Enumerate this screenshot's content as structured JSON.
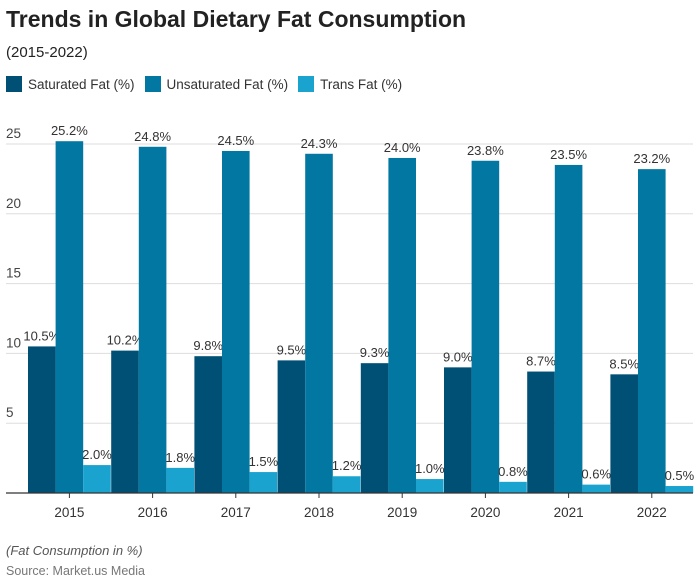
{
  "title": "Trends in Global Dietary Fat Consumption",
  "subtitle": "(2015-2022)",
  "note": "(Fat Consumption in %)",
  "source": "Source: Market.us Media",
  "chart_data": {
    "type": "bar",
    "categories": [
      "2015",
      "2016",
      "2017",
      "2018",
      "2019",
      "2020",
      "2021",
      "2022"
    ],
    "series": [
      {
        "name": "Saturated Fat (%)",
        "color": "#004f74",
        "values": [
          10.5,
          10.2,
          9.8,
          9.5,
          9.3,
          9.0,
          8.7,
          8.5
        ],
        "labels": [
          "10.5%",
          "10.2%",
          "9.8%",
          "9.5%",
          "9.3%",
          "9.0%",
          "8.7%",
          "8.5%"
        ]
      },
      {
        "name": "Unsaturated Fat (%)",
        "color": "#0277a2",
        "values": [
          25.2,
          24.8,
          24.5,
          24.3,
          24.0,
          23.8,
          23.5,
          23.2
        ],
        "labels": [
          "25.2%",
          "24.8%",
          "24.5%",
          "24.3%",
          "24.0%",
          "23.8%",
          "23.5%",
          "23.2%"
        ]
      },
      {
        "name": "Trans Fat (%)",
        "color": "#1ba3d0",
        "values": [
          2.0,
          1.8,
          1.5,
          1.2,
          1.0,
          0.8,
          0.6,
          0.5
        ],
        "labels": [
          "2.0%",
          "1.8%",
          "1.5%",
          "1.2%",
          "1.0%",
          "0.8%",
          "0.6%",
          "0.5%"
        ]
      }
    ],
    "yticks": [
      "5",
      "10",
      "15",
      "20",
      "25"
    ],
    "ylim": [
      0,
      25
    ],
    "grid": true,
    "legend": "top-left"
  }
}
